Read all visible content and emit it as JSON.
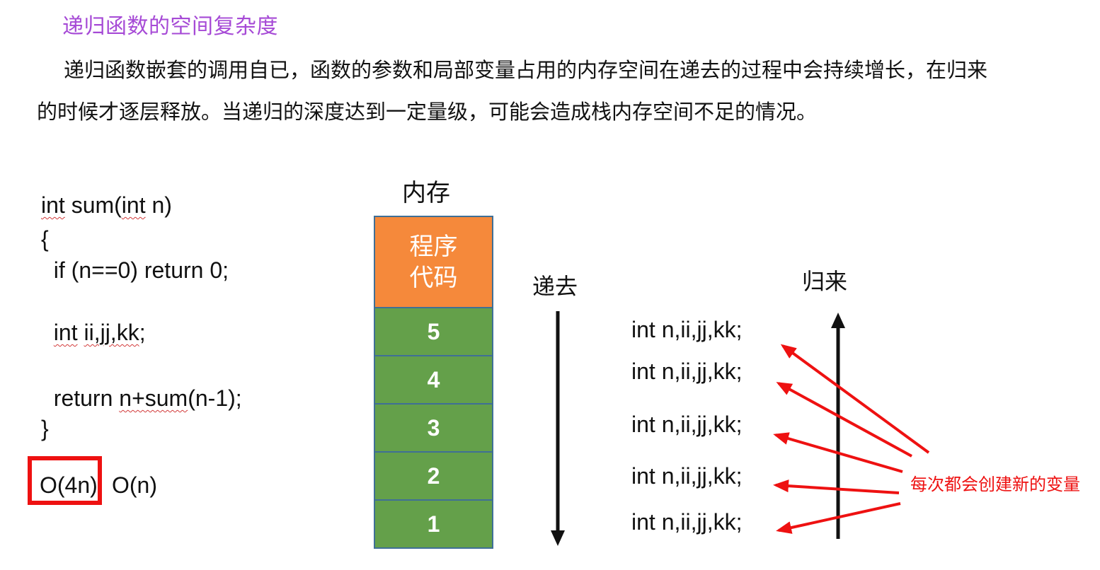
{
  "heading": "递归函数的空间复杂度",
  "paragraph": {
    "line1": "递归函数嵌套的调用自已，函数的参数和局部变量占用的内存空间在递去的过程中会持续增长，在归来",
    "line2": "的时候才逐层释放。当递归的深度达到一定量级，可能会造成栈内存空间不足的情况。"
  },
  "code": {
    "l1": {
      "t1": "int",
      "t2": " sum(",
      "t3": "int",
      "t4": " n)"
    },
    "l2": "{",
    "l3": "  if (n==0) return 0;",
    "l4": {
      "indent": "  ",
      "t1": "int",
      "t2": " ",
      "t3": "ii,jj,kk",
      "t4": ";"
    },
    "l5": {
      "indent": "  ",
      "t1": "return ",
      "t2": "n+sum",
      "t3": "(n-1);"
    },
    "l6": "}"
  },
  "complexity": {
    "boxed": "O(4n)",
    "simplified": "O(n)"
  },
  "memory": {
    "title": "内存",
    "code_block_line1": "程序",
    "code_block_line2": "代码",
    "frames": [
      "5",
      "4",
      "3",
      "2",
      "1"
    ]
  },
  "labels": {
    "recurse": "递去",
    "return": "归来"
  },
  "variables": [
    "int n,ii,jj,kk;",
    "int n,ii,jj,kk;",
    "int n,ii,jj,kk;",
    "int n,ii,jj,kk;",
    "int n,ii,jj,kk;"
  ],
  "annotation": "每次都会创建新的变量",
  "colors": {
    "heading": "#a64ad6",
    "code_block": "#f5893b",
    "frame": "#64a04a",
    "frame_border": "#3f6f96",
    "highlight": "#ee1111",
    "annotation": "#ee1111"
  }
}
